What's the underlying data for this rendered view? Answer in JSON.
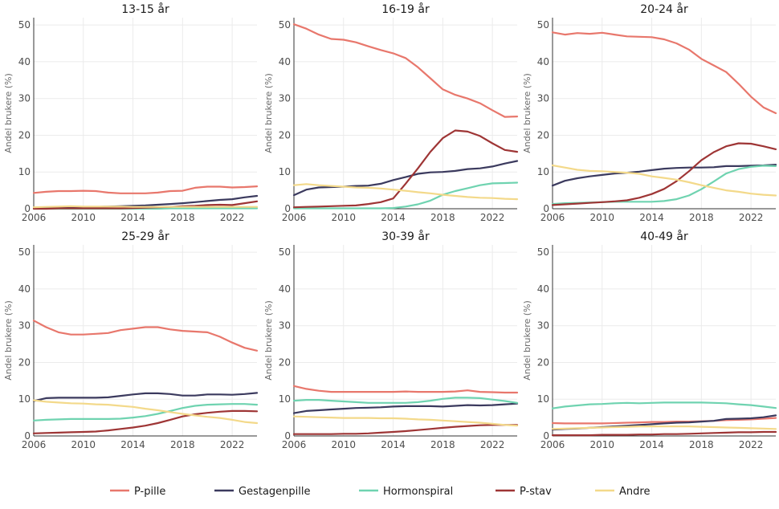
{
  "chart_data": {
    "type": "line",
    "ylabel": "Andel brukere (%)",
    "x_ticks": [
      2006,
      2010,
      2014,
      2018,
      2022
    ],
    "y_ticks": [
      0,
      10,
      20,
      30,
      40,
      50
    ],
    "xlim": [
      2006,
      2024
    ],
    "ylim": [
      0,
      52
    ],
    "legend_position": "bottom",
    "x": [
      2006,
      2007,
      2008,
      2009,
      2010,
      2011,
      2012,
      2013,
      2014,
      2015,
      2016,
      2017,
      2018,
      2019,
      2020,
      2021,
      2022,
      2023,
      2024
    ],
    "series_meta": [
      {
        "name": "P-pille",
        "color": "#e8776c"
      },
      {
        "name": "Gestagenpille",
        "color": "#3b3a5e"
      },
      {
        "name": "Hormonspiral",
        "color": "#6fd3b0"
      },
      {
        "name": "P-stav",
        "color": "#9e3535"
      },
      {
        "name": "Andre",
        "color": "#f3d98a"
      }
    ],
    "panels": [
      {
        "title": "13-15 år",
        "series": [
          {
            "name": "P-pille",
            "values": [
              4.3,
              4.6,
              4.8,
              4.8,
              4.9,
              4.8,
              4.4,
              4.2,
              4.2,
              4.2,
              4.4,
              4.8,
              4.9,
              5.7,
              6.0,
              6.0,
              5.8,
              5.9,
              6.1
            ]
          },
          {
            "name": "Gestagenpille",
            "values": [
              0.2,
              0.3,
              0.3,
              0.4,
              0.4,
              0.5,
              0.6,
              0.7,
              0.8,
              0.9,
              1.1,
              1.3,
              1.5,
              1.8,
              2.1,
              2.4,
              2.6,
              3.1,
              3.5
            ]
          },
          {
            "name": "Hormonspiral",
            "values": [
              0.0,
              0.0,
              0.0,
              0.0,
              0.0,
              0.0,
              0.0,
              0.0,
              0.0,
              0.0,
              0.0,
              0.1,
              0.1,
              0.1,
              0.1,
              0.1,
              0.1,
              0.1,
              0.1
            ]
          },
          {
            "name": "P-stav",
            "values": [
              0.0,
              0.0,
              0.1,
              0.1,
              0.1,
              0.1,
              0.1,
              0.1,
              0.2,
              0.3,
              0.4,
              0.5,
              0.7,
              0.8,
              1.0,
              1.1,
              1.0,
              1.5,
              2.0
            ]
          },
          {
            "name": "Andre",
            "values": [
              0.4,
              0.5,
              0.6,
              0.7,
              0.6,
              0.6,
              0.6,
              0.6,
              0.5,
              0.5,
              0.5,
              0.5,
              0.5,
              0.5,
              0.5,
              0.5,
              0.5,
              0.5,
              0.5
            ]
          }
        ]
      },
      {
        "title": "16-19 år",
        "series": [
          {
            "name": "P-pille",
            "values": [
              50.2,
              49.0,
              47.4,
              46.2,
              46.0,
              45.3,
              44.2,
              43.2,
              42.3,
              41.0,
              38.5,
              35.5,
              32.5,
              31.0,
              30.0,
              28.7,
              26.8,
              25.0,
              25.1
            ]
          },
          {
            "name": "Gestagenpille",
            "values": [
              3.7,
              5.2,
              5.8,
              5.9,
              6.0,
              6.2,
              6.3,
              6.8,
              7.8,
              8.6,
              9.5,
              9.9,
              10.0,
              10.3,
              10.8,
              11.0,
              11.5,
              12.3,
              13.0
            ]
          },
          {
            "name": "Hormonspiral",
            "values": [
              0.1,
              0.1,
              0.1,
              0.1,
              0.1,
              0.1,
              0.1,
              0.1,
              0.2,
              0.6,
              1.2,
              2.2,
              3.8,
              4.8,
              5.6,
              6.4,
              6.9,
              7.0,
              7.1
            ]
          },
          {
            "name": "P-stav",
            "values": [
              0.4,
              0.5,
              0.6,
              0.7,
              0.8,
              0.9,
              1.3,
              1.8,
              2.8,
              6.8,
              11.0,
              15.5,
              19.2,
              21.3,
              21.0,
              19.8,
              17.8,
              16.0,
              15.5
            ]
          },
          {
            "name": "Andre",
            "values": [
              6.4,
              6.7,
              6.4,
              6.2,
              6.0,
              5.8,
              5.7,
              5.5,
              5.2,
              4.9,
              4.5,
              4.2,
              3.8,
              3.5,
              3.2,
              3.0,
              2.9,
              2.7,
              2.6
            ]
          }
        ]
      },
      {
        "title": "20-24 år",
        "series": [
          {
            "name": "P-pille",
            "values": [
              48.0,
              47.4,
              47.8,
              47.6,
              47.9,
              47.4,
              46.9,
              46.8,
              46.7,
              46.1,
              45.0,
              43.3,
              40.8,
              39.0,
              37.2,
              34.0,
              30.5,
              27.6,
              26.0
            ]
          },
          {
            "name": "Gestagenpille",
            "values": [
              6.3,
              7.6,
              8.3,
              8.8,
              9.2,
              9.6,
              9.8,
              10.1,
              10.5,
              10.9,
              11.1,
              11.2,
              11.2,
              11.3,
              11.6,
              11.6,
              11.7,
              11.8,
              12.0
            ]
          },
          {
            "name": "Hormonspiral",
            "values": [
              1.3,
              1.5,
              1.6,
              1.7,
              1.8,
              1.9,
              1.9,
              1.9,
              1.9,
              2.1,
              2.6,
              3.6,
              5.3,
              7.4,
              9.6,
              10.8,
              11.4,
              11.7,
              11.6
            ]
          },
          {
            "name": "P-stav",
            "values": [
              1.0,
              1.2,
              1.4,
              1.6,
              1.8,
              2.0,
              2.3,
              3.0,
              4.0,
              5.4,
              7.5,
              10.2,
              13.2,
              15.4,
              17.0,
              17.8,
              17.7,
              17.0,
              16.2
            ]
          },
          {
            "name": "Andre",
            "values": [
              11.8,
              11.2,
              10.6,
              10.3,
              10.2,
              10.0,
              9.8,
              9.5,
              8.8,
              8.4,
              7.9,
              7.2,
              6.4,
              5.7,
              5.0,
              4.6,
              4.1,
              3.8,
              3.6
            ]
          }
        ]
      },
      {
        "title": "25-29 år",
        "series": [
          {
            "name": "P-pille",
            "values": [
              31.4,
              29.6,
              28.2,
              27.6,
              27.6,
              27.8,
              28.0,
              28.8,
              29.2,
              29.6,
              29.6,
              29.0,
              28.6,
              28.4,
              28.2,
              27.0,
              25.4,
              24.0,
              23.2
            ]
          },
          {
            "name": "Gestagenpille",
            "values": [
              9.5,
              10.3,
              10.4,
              10.4,
              10.4,
              10.4,
              10.5,
              10.9,
              11.3,
              11.6,
              11.6,
              11.4,
              11.0,
              11.0,
              11.3,
              11.3,
              11.2,
              11.4,
              11.7
            ]
          },
          {
            "name": "Hormonspiral",
            "values": [
              4.2,
              4.4,
              4.5,
              4.6,
              4.6,
              4.6,
              4.6,
              4.7,
              5.0,
              5.4,
              6.0,
              6.8,
              7.6,
              8.2,
              8.5,
              8.6,
              8.7,
              8.7,
              8.5
            ]
          },
          {
            "name": "P-stav",
            "values": [
              0.7,
              0.8,
              0.9,
              1.0,
              1.1,
              1.2,
              1.5,
              1.9,
              2.3,
              2.8,
              3.5,
              4.4,
              5.3,
              5.9,
              6.3,
              6.6,
              6.8,
              6.8,
              6.7
            ]
          },
          {
            "name": "Andre",
            "values": [
              9.7,
              9.3,
              9.1,
              8.9,
              8.8,
              8.6,
              8.5,
              8.2,
              7.9,
              7.4,
              7.0,
              6.5,
              6.0,
              5.6,
              5.2,
              4.9,
              4.4,
              3.8,
              3.5
            ]
          }
        ]
      },
      {
        "title": "30-39 år",
        "series": [
          {
            "name": "P-pille",
            "values": [
              13.6,
              12.8,
              12.3,
              12.0,
              12.0,
              12.0,
              12.0,
              12.0,
              12.0,
              12.1,
              12.0,
              12.0,
              12.0,
              12.1,
              12.4,
              12.0,
              11.9,
              11.8,
              11.8
            ]
          },
          {
            "name": "Gestagenpille",
            "values": [
              6.2,
              6.8,
              7.0,
              7.2,
              7.4,
              7.6,
              7.7,
              7.8,
              8.0,
              8.1,
              8.1,
              8.1,
              8.0,
              8.2,
              8.4,
              8.3,
              8.4,
              8.6,
              8.8
            ]
          },
          {
            "name": "Hormonspiral",
            "values": [
              9.6,
              9.8,
              9.8,
              9.6,
              9.4,
              9.2,
              9.0,
              9.0,
              9.0,
              9.0,
              9.2,
              9.6,
              10.1,
              10.4,
              10.4,
              10.3,
              9.9,
              9.5,
              9.0
            ]
          },
          {
            "name": "P-stav",
            "values": [
              0.5,
              0.5,
              0.5,
              0.5,
              0.6,
              0.6,
              0.7,
              0.9,
              1.1,
              1.3,
              1.6,
              1.9,
              2.2,
              2.5,
              2.7,
              2.9,
              3.0,
              3.0,
              3.0
            ]
          },
          {
            "name": "Andre",
            "values": [
              5.3,
              5.2,
              5.1,
              5.0,
              4.9,
              4.9,
              4.9,
              4.8,
              4.8,
              4.7,
              4.5,
              4.4,
              4.2,
              4.0,
              3.8,
              3.6,
              3.3,
              3.0,
              2.8
            ]
          }
        ]
      },
      {
        "title": "40-49 år",
        "series": [
          {
            "name": "P-pille",
            "values": [
              3.5,
              3.4,
              3.4,
              3.4,
              3.4,
              3.5,
              3.6,
              3.7,
              3.8,
              3.8,
              3.9,
              3.9,
              4.0,
              4.1,
              4.3,
              4.4,
              4.5,
              4.7,
              4.9
            ]
          },
          {
            "name": "Gestagenpille",
            "values": [
              1.7,
              1.9,
              2.0,
              2.2,
              2.4,
              2.6,
              2.8,
              3.0,
              3.2,
              3.4,
              3.6,
              3.7,
              3.9,
              4.1,
              4.6,
              4.7,
              4.8,
              5.1,
              5.6
            ]
          },
          {
            "name": "Hormonspiral",
            "values": [
              7.5,
              8.0,
              8.3,
              8.6,
              8.7,
              8.9,
              9.0,
              8.9,
              9.0,
              9.1,
              9.1,
              9.1,
              9.1,
              9.0,
              8.9,
              8.6,
              8.4,
              8.0,
              7.6
            ]
          },
          {
            "name": "P-stav",
            "values": [
              0.2,
              0.2,
              0.2,
              0.2,
              0.3,
              0.3,
              0.3,
              0.4,
              0.4,
              0.5,
              0.5,
              0.6,
              0.7,
              0.8,
              0.9,
              1.0,
              1.0,
              1.1,
              1.1
            ]
          },
          {
            "name": "Andre",
            "values": [
              1.9,
              2.0,
              2.1,
              2.2,
              2.3,
              2.4,
              2.5,
              2.6,
              2.6,
              2.6,
              2.6,
              2.6,
              2.5,
              2.4,
              2.3,
              2.2,
              2.1,
              2.0,
              1.9
            ]
          }
        ]
      }
    ]
  }
}
